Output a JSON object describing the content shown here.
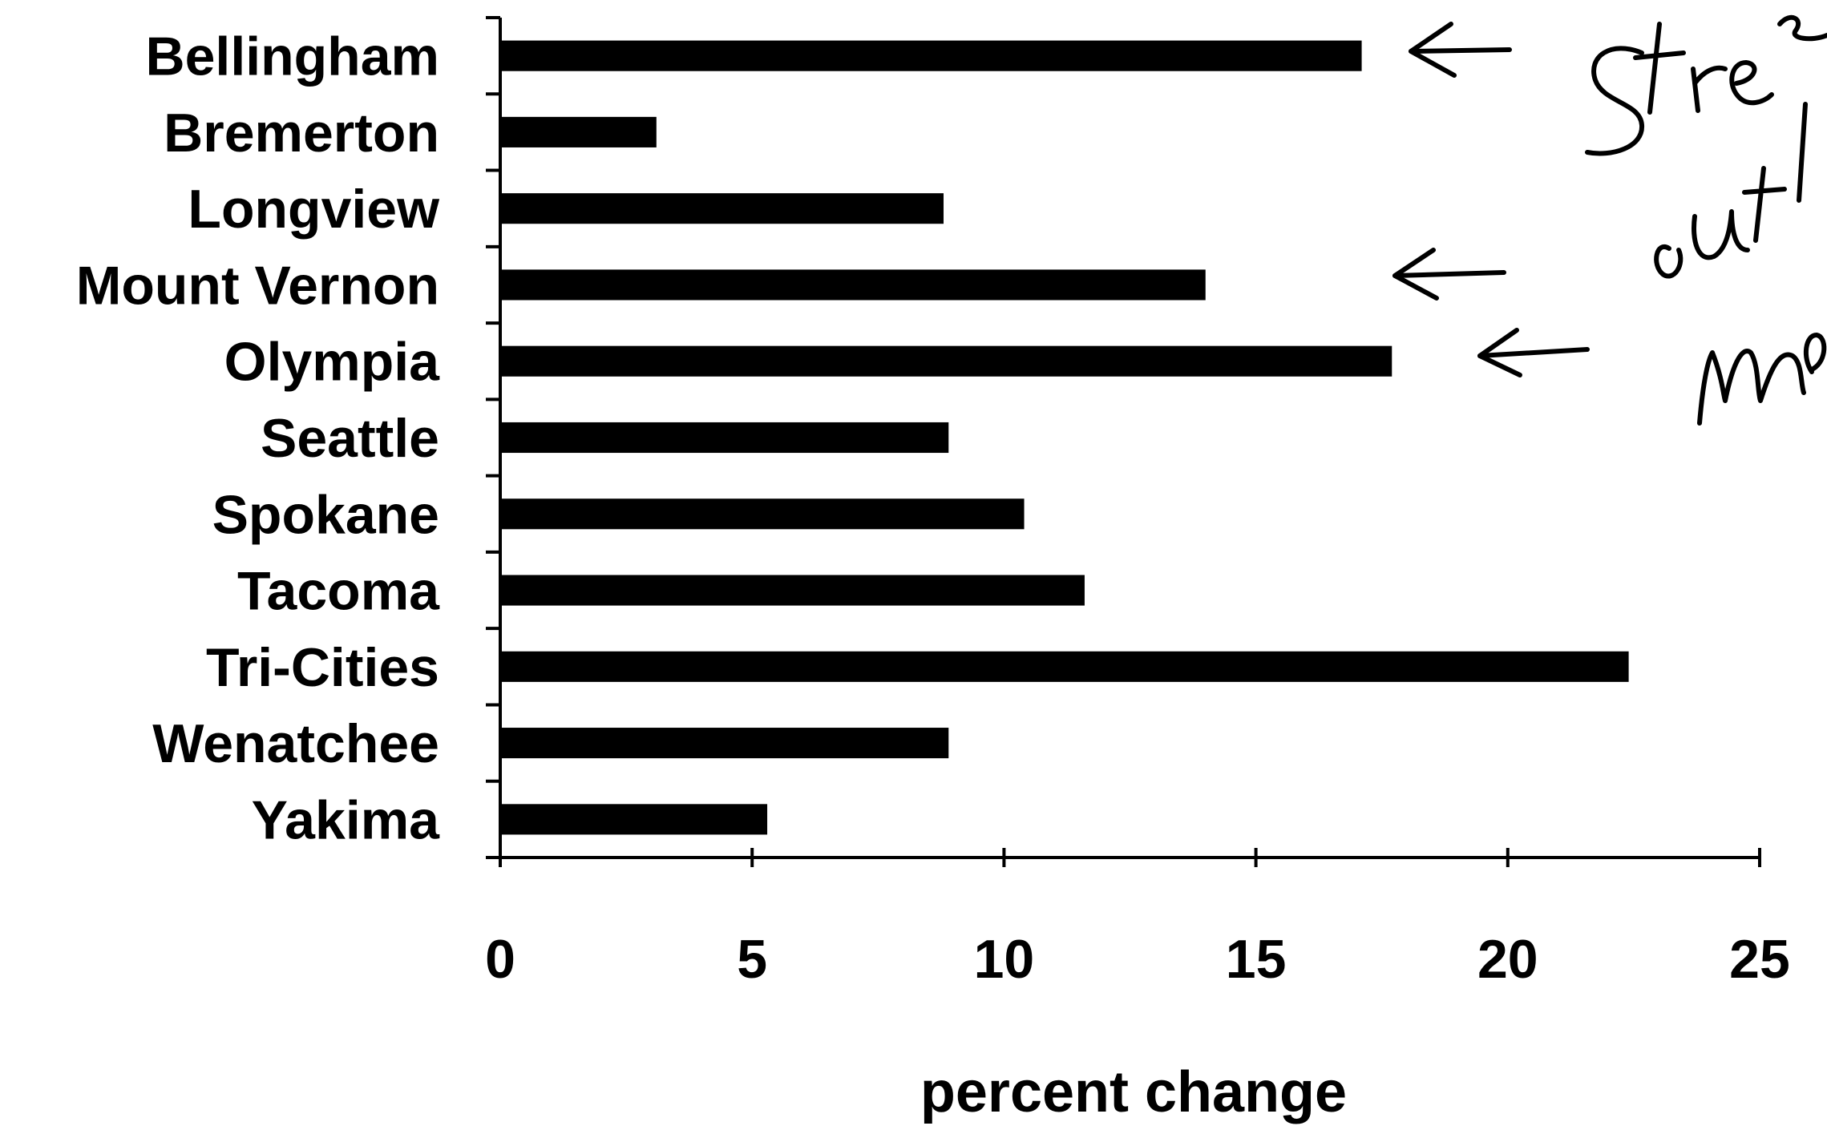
{
  "chart_data": {
    "type": "bar",
    "orientation": "horizontal",
    "categories": [
      "Bellingham",
      "Bremerton",
      "Longview",
      "Mount Vernon",
      "Olympia",
      "Seattle",
      "Spokane",
      "Tacoma",
      "Tri-Cities",
      "Wenatchee",
      "Yakima"
    ],
    "values": [
      17.1,
      3.1,
      8.8,
      14.0,
      17.7,
      8.9,
      10.4,
      11.6,
      22.4,
      8.9,
      5.3
    ],
    "xlabel": "percent change",
    "ylabel": "",
    "xlim": [
      0,
      25
    ],
    "xticks": [
      "0",
      "5",
      "10",
      "15",
      "20",
      "25"
    ],
    "grid": false,
    "bar_color": "#000000",
    "annotations": {
      "arrows_point_to": [
        "Bellingham",
        "Mount Vernon",
        "Olympia"
      ],
      "handwritten_note_fragments": [
        "Stre",
        "outl",
        "me"
      ]
    }
  }
}
